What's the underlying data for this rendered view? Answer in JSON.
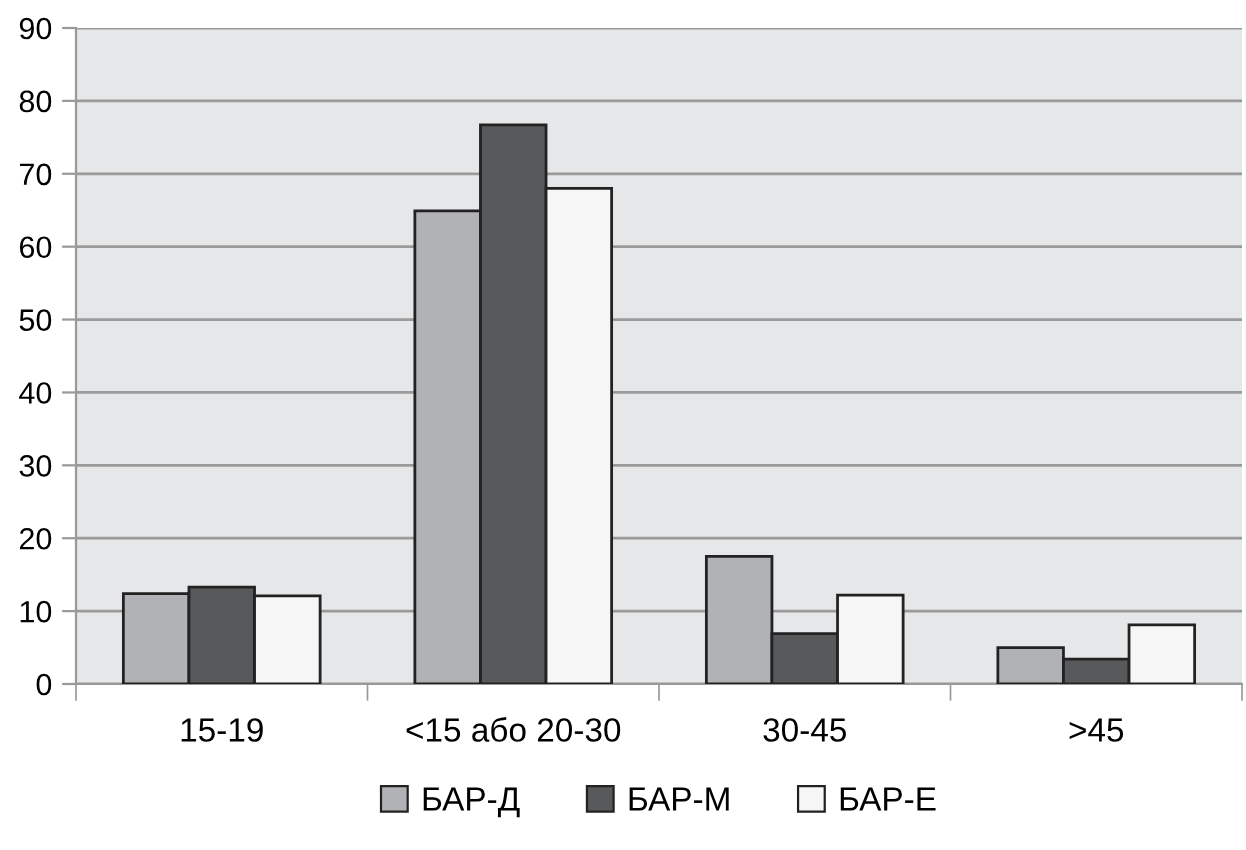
{
  "chart_data": {
    "type": "bar",
    "categories": [
      "15-19",
      "<15 або 20-30",
      "30-45",
      ">45"
    ],
    "series": [
      {
        "name": "БАР-Д",
        "color": "#b1b2b6",
        "values": [
          12.4,
          64.9,
          17.5,
          5.0
        ]
      },
      {
        "name": "БАР-М",
        "color": "#58595b",
        "values": [
          13.3,
          76.7,
          6.9,
          3.4
        ]
      },
      {
        "name": "БАР-Е",
        "color": "#f6f6f6",
        "values": [
          12.1,
          68.0,
          12.2,
          8.1
        ]
      }
    ],
    "ylim": [
      0,
      90
    ],
    "yticks": [
      0,
      10,
      20,
      30,
      40,
      50,
      60,
      70,
      80,
      90
    ],
    "grid": "y",
    "legend": "bottom"
  }
}
